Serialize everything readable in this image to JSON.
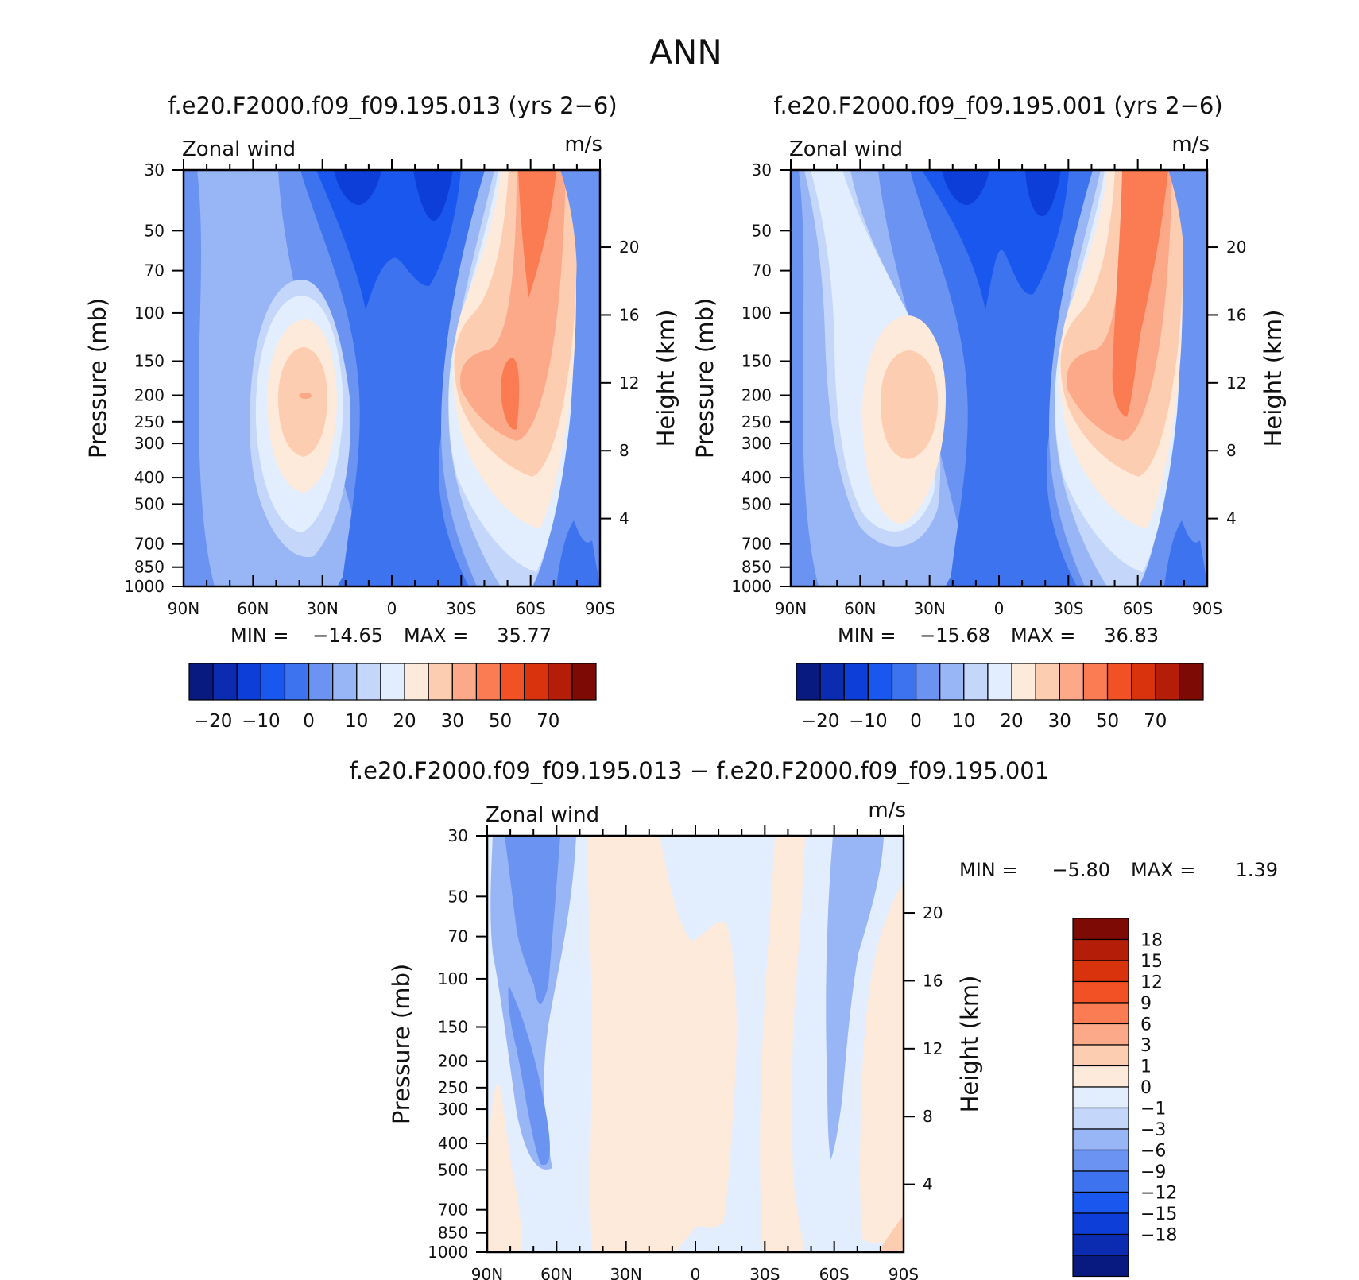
{
  "figure": {
    "title": "ANN"
  },
  "colors": {
    "absolute_bins": [
      "#081a80",
      "#0b2bb0",
      "#0d3ed8",
      "#1a57ee",
      "#3d73ee",
      "#6b93f2",
      "#98b5f6",
      "#c4d7fb",
      "#e2edfd",
      "#feeadb",
      "#fdcdb2",
      "#fca98a",
      "#fb7c52",
      "#f25125",
      "#d9330e",
      "#b41e08",
      "#7e0a05"
    ],
    "difference_bins": [
      "#081a80",
      "#0b2bb0",
      "#0d3ed8",
      "#1a57ee",
      "#3d73ee",
      "#6b93f2",
      "#98b5f6",
      "#c4d7fb",
      "#e2edfd",
      "#feeadb",
      "#fdcdb2",
      "#fca98a",
      "#fb7c52",
      "#f25125",
      "#d9330e",
      "#b41e08",
      "#7e0a05"
    ]
  },
  "chart_data": [
    {
      "type": "heatmap",
      "title": "f.e20.F2000.f09_f09.195.013 (yrs 2−6)",
      "variable_label": "Zonal wind",
      "units": "m/s",
      "ylabel": "Pressure (mb)",
      "ylabel_right": "Height (km)",
      "x_ticks": [
        "90N",
        "60N",
        "30N",
        "0",
        "30S",
        "60S",
        "90S"
      ],
      "x_values": [
        90,
        60,
        30,
        0,
        -30,
        -60,
        -90
      ],
      "y_ticks": [
        30,
        50,
        70,
        100,
        150,
        200,
        250,
        300,
        400,
        500,
        700,
        850,
        1000
      ],
      "height_ticks": [
        20,
        16,
        12,
        8,
        4
      ],
      "ylim": [
        1000,
        30
      ],
      "y_scale": "log",
      "min_label": "MIN =",
      "min_value": "−14.65",
      "max_label": "MAX =",
      "max_value": "35.77",
      "colorbar_labels": [
        "−20",
        "−10",
        "0",
        "10",
        "20",
        "30",
        "50",
        "70"
      ],
      "features": [
        {
          "kind": "easterly_core",
          "lat": 0,
          "top_value": -12
        },
        {
          "kind": "westerly_jet",
          "lat": -45,
          "pressure": 200,
          "value": 35.77
        },
        {
          "kind": "westerly_jet",
          "lat": 40,
          "pressure": 200,
          "value": 20
        }
      ]
    },
    {
      "type": "heatmap",
      "title": "f.e20.F2000.f09_f09.195.001 (yrs 2−6)",
      "variable_label": "Zonal wind",
      "units": "m/s",
      "ylabel": "Pressure (mb)",
      "ylabel_right": "Height (km)",
      "x_ticks": [
        "90N",
        "60N",
        "30N",
        "0",
        "30S",
        "60S",
        "90S"
      ],
      "x_values": [
        90,
        60,
        30,
        0,
        -30,
        -60,
        -90
      ],
      "y_ticks": [
        30,
        50,
        70,
        100,
        150,
        200,
        250,
        300,
        400,
        500,
        700,
        850,
        1000
      ],
      "height_ticks": [
        20,
        16,
        12,
        8,
        4
      ],
      "ylim": [
        1000,
        30
      ],
      "y_scale": "log",
      "min_label": "MIN =",
      "min_value": "−15.68",
      "max_label": "MAX =",
      "max_value": "36.83",
      "colorbar_labels": [
        "−20",
        "−10",
        "0",
        "10",
        "20",
        "30",
        "50",
        "70"
      ]
    },
    {
      "type": "heatmap",
      "title": "f.e20.F2000.f09_f09.195.013 − f.e20.F2000.f09_f09.195.001",
      "variable_label": "Zonal wind",
      "units": "m/s",
      "ylabel": "Pressure (mb)",
      "ylabel_right": "Height (km)",
      "x_ticks": [
        "90N",
        "60N",
        "30N",
        "0",
        "30S",
        "60S",
        "90S"
      ],
      "x_values": [
        90,
        60,
        30,
        0,
        -30,
        -60,
        -90
      ],
      "y_ticks": [
        30,
        50,
        70,
        100,
        150,
        200,
        250,
        300,
        400,
        500,
        700,
        850,
        1000
      ],
      "height_ticks": [
        20,
        16,
        12,
        8,
        4
      ],
      "ylim": [
        1000,
        30
      ],
      "y_scale": "log",
      "min_label": "MIN =",
      "min_value": "−5.80",
      "max_label": "MAX =",
      "max_value": "1.39",
      "colorbar_labels": [
        "18",
        "15",
        "12",
        "9",
        "6",
        "3",
        "1",
        "0",
        "−1",
        "−3",
        "−6",
        "−9",
        "−12",
        "−15",
        "−18"
      ]
    }
  ]
}
